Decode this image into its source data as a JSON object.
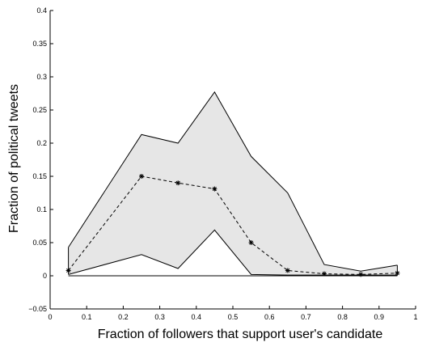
{
  "chart_data": {
    "type": "line",
    "title": "",
    "xlabel": "Fraction of followers that support user's candidate",
    "ylabel": "Fraction of political tweets",
    "xlim": [
      0,
      1
    ],
    "ylim": [
      -0.05,
      0.4
    ],
    "x_ticks": [
      "0",
      "0.1",
      "0.2",
      "0.3",
      "0.4",
      "0.5",
      "0.6",
      "0.7",
      "0.8",
      "0.9",
      "1"
    ],
    "y_ticks": [
      "−0.05",
      "0",
      "0.05",
      "0.1",
      "0.15",
      "0.2",
      "0.25",
      "0.3",
      "0.35",
      "0.4"
    ],
    "x": [
      0.05,
      0.25,
      0.35,
      0.45,
      0.55,
      0.65,
      0.75,
      0.85,
      0.95
    ],
    "series": [
      {
        "style": "dashed-with-star-markers",
        "values": [
          0.008,
          0.15,
          0.14,
          0.131,
          0.05,
          0.008,
          0.003,
          0.002,
          0.004
        ]
      },
      {
        "style": "upper-bound",
        "values": [
          0.043,
          0.213,
          0.2,
          0.277,
          0.18,
          0.125,
          0.017,
          0.007,
          0.016
        ]
      },
      {
        "style": "lower-bound",
        "values": [
          0.002,
          0.032,
          0.011,
          0.069,
          0.002,
          0.001,
          0.001,
          0.001,
          0.001
        ]
      }
    ],
    "band_fill": "#e6e6e6",
    "line_color": "#000000",
    "zero_line": true,
    "grid": false,
    "legend": false
  }
}
